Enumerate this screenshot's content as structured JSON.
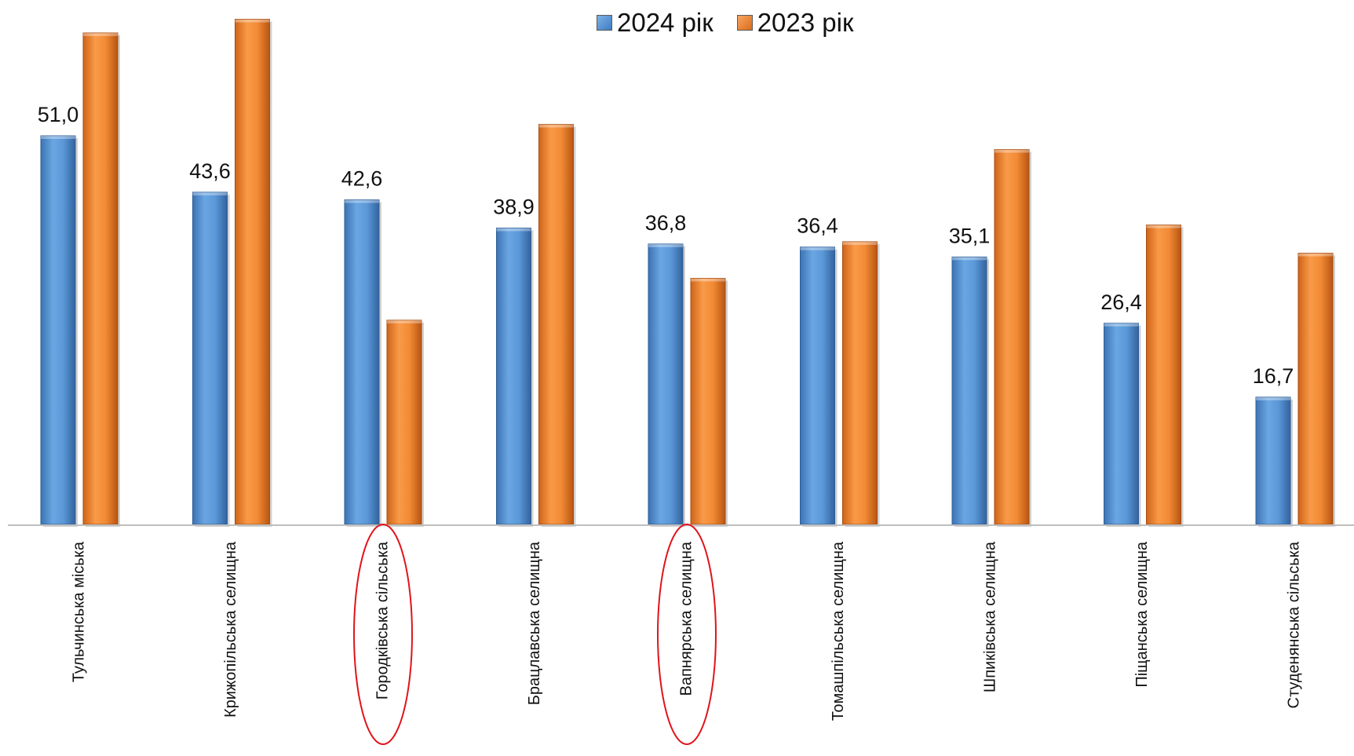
{
  "legend": {
    "items": [
      {
        "label": "2024 рік",
        "color": "#4f8fd3"
      },
      {
        "label": "2023 рік",
        "color": "#ef8530"
      }
    ]
  },
  "chart_data": {
    "type": "bar",
    "categories": [
      "Тульчинська міська",
      "Крижопільська селищна",
      "Городківська сільська",
      "Брацлавська селищна",
      "Вапнярська селищна",
      "Томашпільська селищна",
      "Шпиківська селищна",
      "Піщанська селищна",
      "Студенянська сільська"
    ],
    "series": [
      {
        "name": "2024 рік",
        "color": "#4f8fd3",
        "values": [
          51.0,
          43.6,
          42.6,
          38.9,
          36.8,
          36.4,
          35.1,
          26.4,
          16.7
        ],
        "labels": [
          "51,0",
          "43,6",
          "42,6",
          "38,9",
          "36,8",
          "36,4",
          "35,1",
          "26,4",
          "16,7"
        ]
      },
      {
        "name": "2023 рік",
        "color": "#ef8530",
        "values": [
          64.5,
          66.3,
          26.8,
          52.5,
          32.3,
          37.1,
          49.2,
          39.3,
          35.6
        ]
      }
    ],
    "highlighted_categories": [
      "Городківська сільська",
      "Вапнярська селищна"
    ],
    "highlight_color": "#e0141b",
    "ylim": [
      0,
      68
    ],
    "legend_position": "top-center",
    "grid": false
  }
}
